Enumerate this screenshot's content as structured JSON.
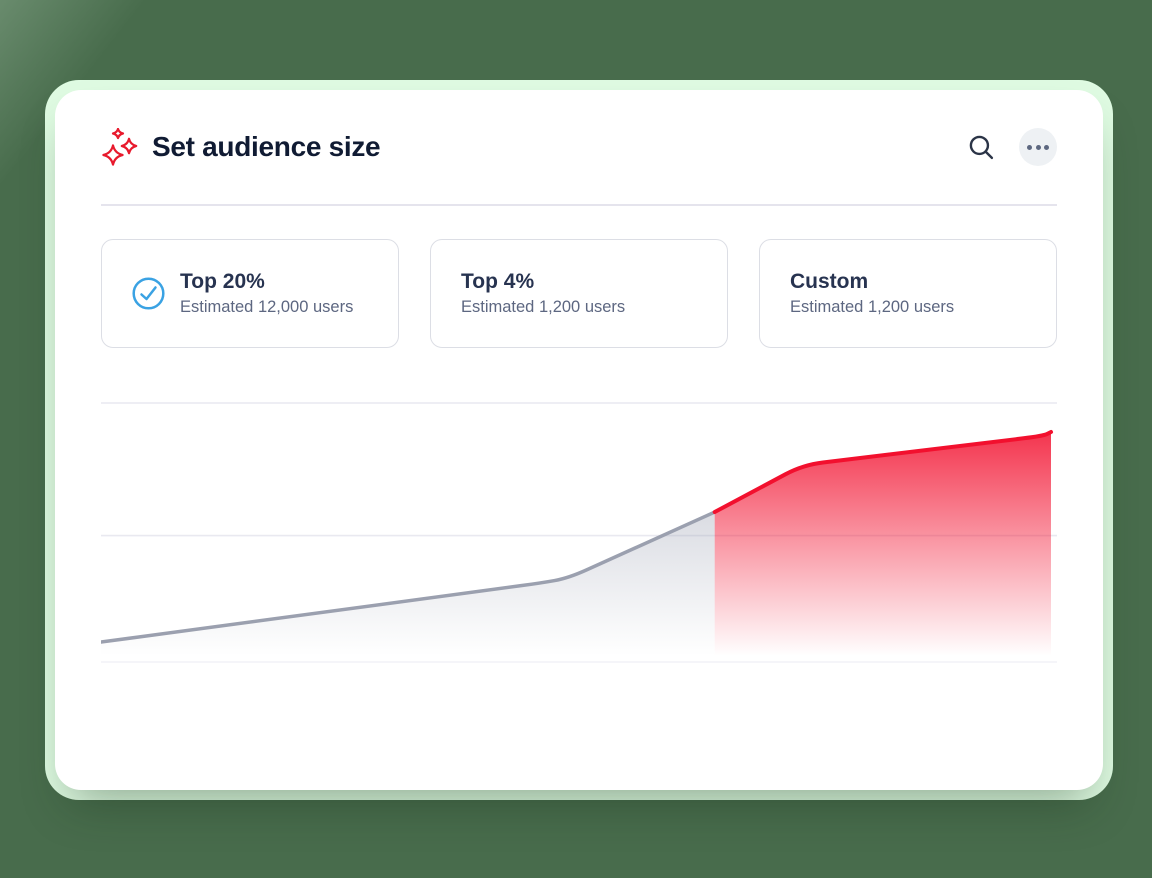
{
  "header": {
    "title": "Set audience size"
  },
  "options": [
    {
      "label": "Top 20%",
      "estimate": "Estimated 12,000 users",
      "selected": true
    },
    {
      "label": "Top 4%",
      "estimate": "Estimated 1,200 users",
      "selected": false
    },
    {
      "label": "Custom",
      "estimate": "Estimated 1,200 users",
      "selected": false
    }
  ],
  "chart_data": {
    "type": "area",
    "title": "",
    "xlabel": "",
    "ylabel": "",
    "xlim": [
      0,
      100
    ],
    "ylim": [
      0,
      100
    ],
    "gridlines_y": [
      0,
      48.8,
      100
    ],
    "legend": "none",
    "tick_labels": "none",
    "note": "cumulative audience reach curve; selected segment highlighted in red",
    "series": [
      {
        "name": "unselected-range",
        "x": [
          0,
          46.3,
          49.2,
          64.6
        ],
        "y": [
          7.7,
          30.5,
          32.4,
          57.9
        ],
        "line_color": "#9BA0AF",
        "fill_color": "#9EA3B4",
        "fill_opacity_top": 0.38
      },
      {
        "name": "selected-range",
        "x": [
          64.6,
          73.9,
          99.2,
          100
        ],
        "y": [
          57.9,
          76.1,
          87.3,
          88.8
        ],
        "line_color": "#F2102E",
        "fill_color": "#F2112F",
        "fill_opacity_top": 0.85
      }
    ]
  },
  "colors": {
    "background": "#486C4C",
    "halo": "#DFFBE2",
    "card": "#FFFFFF",
    "accent_red": "#E81A2D",
    "check_blue": "#3AA2E3",
    "title_navy": "#101B33",
    "subtitle_gray": "#5D6781",
    "divider": "#E5E4ED",
    "option_border": "#DCDEE5"
  }
}
